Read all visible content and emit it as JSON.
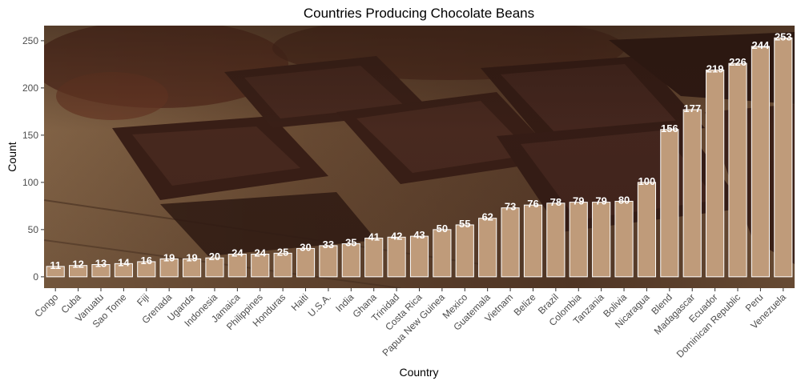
{
  "chart_data": {
    "type": "bar",
    "title": "Countries Producing Chocolate Beans",
    "xlabel": "Country",
    "ylabel": "Count",
    "ylim": [
      -12,
      266
    ],
    "yticks": [
      0,
      50,
      100,
      150,
      200,
      250
    ],
    "bar_fill": "#bf9b7a",
    "bar_stroke": "#ffffff",
    "label_color": "#ffffff",
    "background": "chocolate-bars-photo",
    "grid": false,
    "legend": "none",
    "categories": [
      "Congo",
      "Cuba",
      "Vanuatu",
      "Sao Tome",
      "Fiji",
      "Grenada",
      "Uganda",
      "Indonesia",
      "Jamaica",
      "Philippines",
      "Honduras",
      "Haiti",
      "U.S.A.",
      "India",
      "Ghana",
      "Trinidad",
      "Costa Rica",
      "Papua New Guinea",
      "Mexico",
      "Guatemala",
      "Vietnam",
      "Belize",
      "Brazil",
      "Colombia",
      "Tanzania",
      "Bolivia",
      "Nicaragua",
      "Blend",
      "Madagascar",
      "Ecuador",
      "Dominican Republic",
      "Peru",
      "Venezuela"
    ],
    "values": [
      11,
      12,
      13,
      14,
      16,
      19,
      19,
      20,
      24,
      24,
      25,
      30,
      33,
      35,
      41,
      42,
      43,
      50,
      55,
      62,
      73,
      76,
      78,
      79,
      79,
      80,
      100,
      156,
      177,
      219,
      226,
      244,
      253
    ]
  }
}
